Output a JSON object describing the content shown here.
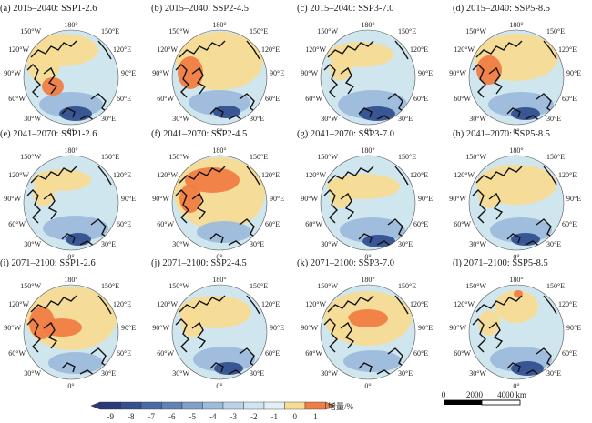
{
  "panels": [
    {
      "title": "(a) 2015–2040: SSP1-2.6",
      "variant": "a"
    },
    {
      "title": "(b) 2015–2040: SSP2-4.5",
      "variant": "b"
    },
    {
      "title": "(c) 2015–2040: SSP3-7.0",
      "variant": "c"
    },
    {
      "title": "(d) 2015–2040: SSP5-8.5",
      "variant": "d"
    },
    {
      "title": "(e) 2041–2070: SSP1-2.6",
      "variant": "e"
    },
    {
      "title": "(f) 2041–2070: SSP2-4.5",
      "variant": "f"
    },
    {
      "title": "(g) 2041–2070: SSP3-7.0",
      "variant": "g"
    },
    {
      "title": "(h) 2041–2070: SSP5-8.5",
      "variant": "h"
    },
    {
      "title": "(i) 2071–2100: SSP1-2.6",
      "variant": "i"
    },
    {
      "title": "(j) 2071–2100: SSP2-4.5",
      "variant": "j"
    },
    {
      "title": "(k) 2071–2100: SSP3-7.0",
      "variant": "k"
    },
    {
      "title": "(l) 2071–2100: SSP5-8.5",
      "variant": "l"
    }
  ],
  "map_labels": {
    "north": "180°",
    "upper_left": "150°W",
    "left_upper": "120°W",
    "left_mid": "90°W",
    "left_lower": "60°W",
    "lower_left": "30°W",
    "south": "0°",
    "upper_right": "150°E",
    "right_upper": "120°E",
    "right_mid": "90°E",
    "right_lower": "60°E",
    "lower_right": "30°E"
  },
  "colorbar": {
    "ticks": [
      "-9",
      "-8",
      "-7",
      "-6",
      "-5",
      "-4",
      "-3",
      "-2",
      "-1",
      "0",
      "1"
    ],
    "colors": [
      "#2b3a78",
      "#34508f",
      "#4a6aa6",
      "#5f82b7",
      "#7f9fca",
      "#9dbbdb",
      "#b9d3e8",
      "#cfe3f0",
      "#e2eff3",
      "#f7dc94",
      "#f07d45"
    ],
    "label": "增量/%"
  },
  "scalebar": {
    "ticks": [
      "0",
      "2000",
      "4000 km"
    ]
  },
  "colors": {
    "ocean_light": "#cfe6ef",
    "mid_blue": "#9dbbdb",
    "deep_blue": "#34508f",
    "positive": "#f7dc94",
    "strong_positive": "#f07d45",
    "coast": "#111111"
  }
}
